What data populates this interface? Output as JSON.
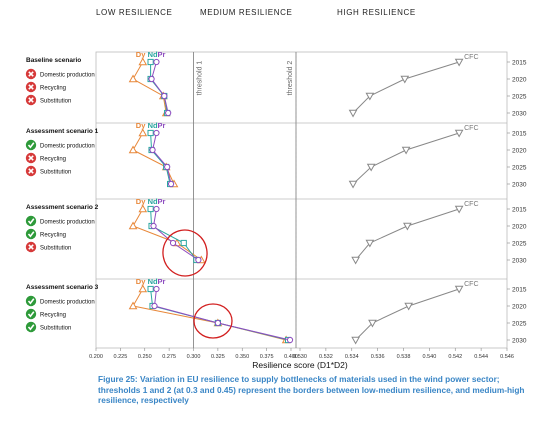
{
  "header": {
    "low": "LOW RESILIENCE",
    "medium": "MEDIUM RESILIENCE",
    "high": "HIGH RESILIENCE"
  },
  "caption": "Figure 25: Variation in EU resilience to supply bottlenecks of materials used in the wind power sector; thresholds 1 and 2 (at 0.3 and 0.45) represent the borders between low-medium resilience, and medium-high resilience, respectively",
  "colors": {
    "Dy": "#e8883a",
    "Nd": "#2aa6a0",
    "Pr": "#8e4cc0",
    "CFC": "#888888",
    "highlight": "#d21f1f",
    "ok": "#2e9a3a",
    "fail": "#d63a3a"
  },
  "chart_data": {
    "type": "line",
    "xlabel": "Resilience score (D1*D2)",
    "x_axis_left": {
      "range": [
        0.2,
        0.4
      ],
      "ticks": [
        "0.200",
        "0.225",
        "0.250",
        "0.275",
        "0.300",
        "0.325",
        "0.350",
        "0.375",
        "0.400"
      ]
    },
    "x_axis_right": {
      "range": [
        0.53,
        0.546
      ],
      "ticks": [
        "0.530",
        "0.532",
        "0.534",
        "0.536",
        "0.538",
        "0.540",
        "0.542",
        "0.544",
        "0.546"
      ]
    },
    "years": [
      "2015",
      "2020",
      "2025",
      "2030"
    ],
    "thresholds": [
      {
        "label": "threshold 1",
        "value": 0.3
      },
      {
        "label": "threshold 2",
        "value": 0.45
      }
    ],
    "panels": [
      {
        "title": "Baseline scenario",
        "factors": [
          {
            "label": "Domestic production",
            "status": "fail"
          },
          {
            "label": "Recycling",
            "status": "fail"
          },
          {
            "label": "Substitution",
            "status": "fail"
          }
        ],
        "series": [
          {
            "name": "Dy",
            "values": [
              0.248,
              0.238,
              0.269,
              0.272
            ]
          },
          {
            "name": "Nd",
            "values": [
              0.256,
              0.256,
              0.27,
              0.273
            ]
          },
          {
            "name": "Pr",
            "values": [
              0.262,
              0.257,
              0.27,
              0.274
            ]
          },
          {
            "name": "CFC",
            "values": [
              0.5423,
              0.5381,
              0.5354,
              0.5341
            ]
          }
        ]
      },
      {
        "title": "Assessment scenario 1",
        "factors": [
          {
            "label": "Domestic production",
            "status": "ok"
          },
          {
            "label": "Recycling",
            "status": "fail"
          },
          {
            "label": "Substitution",
            "status": "fail"
          }
        ],
        "series": [
          {
            "name": "Dy",
            "values": [
              0.248,
              0.238,
              0.272,
              0.28
            ]
          },
          {
            "name": "Nd",
            "values": [
              0.256,
              0.257,
              0.272,
              0.276
            ]
          },
          {
            "name": "Pr",
            "values": [
              0.262,
              0.258,
              0.273,
              0.277
            ]
          },
          {
            "name": "CFC",
            "values": [
              0.5423,
              0.5382,
              0.5355,
              0.5341
            ]
          }
        ]
      },
      {
        "title": "Assessment scenario 2",
        "factors": [
          {
            "label": "Domestic production",
            "status": "ok"
          },
          {
            "label": "Recycling",
            "status": "ok"
          },
          {
            "label": "Substitution",
            "status": "fail"
          }
        ],
        "series": [
          {
            "name": "Dy",
            "values": [
              0.248,
              0.238,
              0.283,
              0.308
            ]
          },
          {
            "name": "Nd",
            "values": [
              0.256,
              0.257,
              0.29,
              0.303
            ]
          },
          {
            "name": "Pr",
            "values": [
              0.262,
              0.259,
              0.279,
              0.305
            ]
          },
          {
            "name": "CFC",
            "values": [
              0.5423,
              0.5383,
              0.5354,
              0.5343
            ]
          }
        ]
      },
      {
        "title": "Assessment scenario 3",
        "factors": [
          {
            "label": "Domestic production",
            "status": "ok"
          },
          {
            "label": "Recycling",
            "status": "ok"
          },
          {
            "label": "Substitution",
            "status": "ok"
          }
        ],
        "series": [
          {
            "name": "Dy",
            "values": [
              0.248,
              0.238,
              0.325,
              0.395
            ]
          },
          {
            "name": "Nd",
            "values": [
              0.256,
              0.258,
              0.325,
              0.397
            ]
          },
          {
            "name": "Pr",
            "values": [
              0.262,
              0.26,
              0.325,
              0.399
            ]
          },
          {
            "name": "CFC",
            "values": [
              0.5423,
              0.5384,
              0.5356,
              0.5343
            ]
          }
        ]
      }
    ]
  }
}
